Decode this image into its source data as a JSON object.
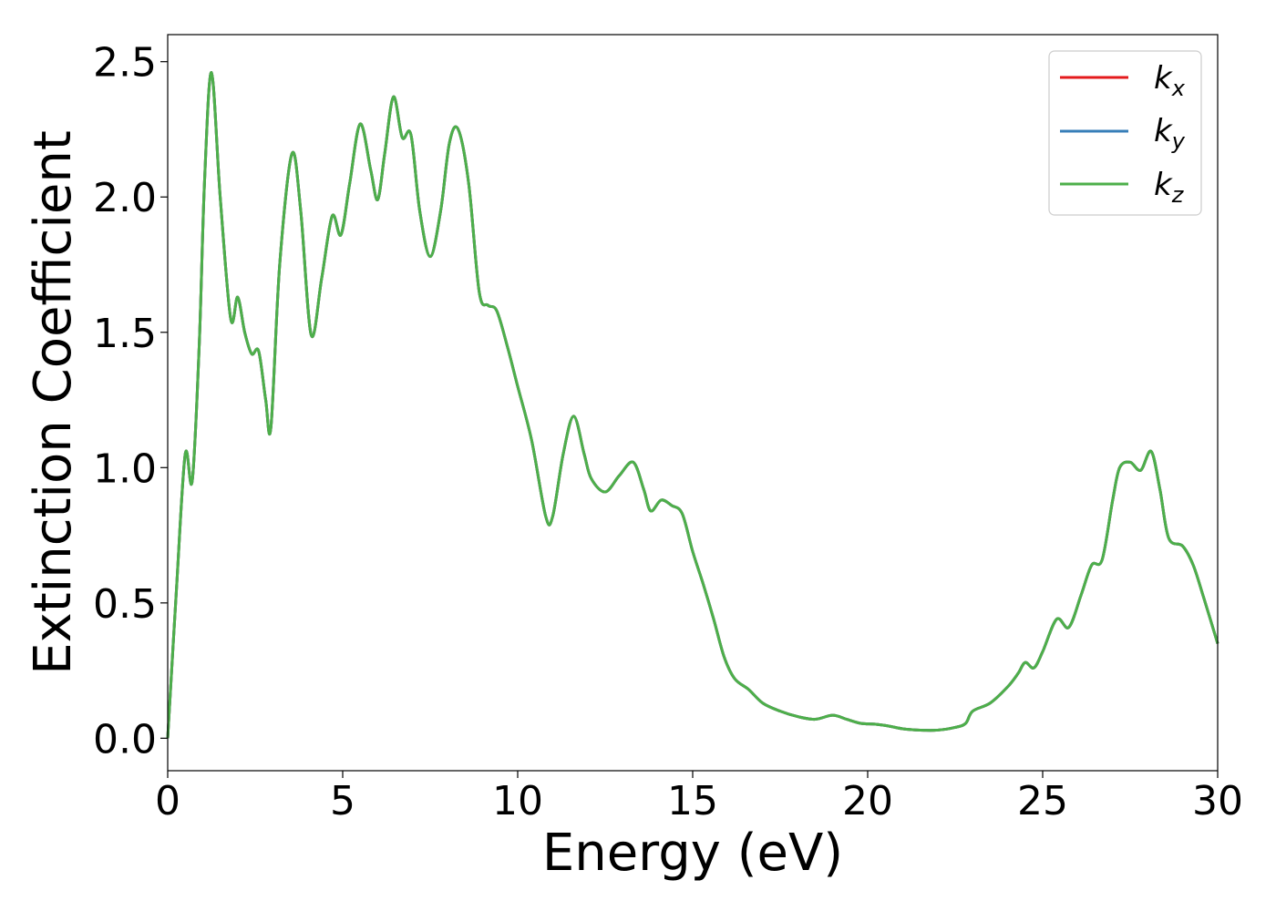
{
  "chart_data": {
    "type": "line",
    "xlabel": "Energy (eV)",
    "ylabel": "Extinction Coefficient",
    "xlim": [
      0,
      30
    ],
    "ylim": [
      -0.12,
      2.6
    ],
    "xticks": [
      0,
      5,
      10,
      15,
      20,
      25,
      30
    ],
    "xtick_labels": [
      "0",
      "5",
      "10",
      "15",
      "20",
      "25",
      "30"
    ],
    "yticks": [
      0.0,
      0.5,
      1.0,
      1.5,
      2.0,
      2.5
    ],
    "ytick_labels": [
      "0.0",
      "0.5",
      "1.0",
      "1.5",
      "2.0",
      "2.5"
    ],
    "grid": false,
    "legend_position": "top-right",
    "series": [
      {
        "name": "k_x",
        "label_base": "k",
        "label_sub": "x",
        "color": "#e41a1c",
        "x": [
          0,
          0.25,
          0.5,
          0.7,
          0.9,
          1.05,
          1.25,
          1.5,
          1.8,
          2.0,
          2.2,
          2.4,
          2.6,
          2.8,
          2.95,
          3.2,
          3.55,
          3.8,
          4.1,
          4.4,
          4.7,
          4.95,
          5.2,
          5.5,
          5.8,
          6.0,
          6.2,
          6.45,
          6.7,
          6.95,
          7.2,
          7.5,
          7.8,
          8.05,
          8.3,
          8.6,
          8.9,
          9.15,
          9.4,
          9.7,
          10.0,
          10.4,
          10.8,
          11.0,
          11.3,
          11.6,
          11.9,
          12.1,
          12.5,
          12.9,
          13.3,
          13.6,
          13.8,
          14.1,
          14.4,
          14.7,
          15.0,
          15.3,
          15.6,
          15.9,
          16.2,
          16.6,
          17.0,
          17.5,
          18.0,
          18.5,
          19.0,
          19.4,
          19.8,
          20.2,
          20.6,
          21.0,
          21.5,
          22.0,
          22.5,
          22.8,
          23.0,
          23.5,
          24.0,
          24.3,
          24.5,
          24.75,
          25.0,
          25.4,
          25.75,
          26.1,
          26.4,
          26.7,
          27.0,
          27.2,
          27.5,
          27.8,
          28.1,
          28.35,
          28.6,
          29.0,
          29.3,
          29.6,
          30.0
        ],
        "y": [
          0.0,
          0.55,
          1.05,
          0.95,
          1.45,
          2.05,
          2.46,
          2.0,
          1.55,
          1.63,
          1.5,
          1.42,
          1.43,
          1.25,
          1.15,
          1.75,
          2.16,
          1.95,
          1.49,
          1.7,
          1.93,
          1.86,
          2.05,
          2.27,
          2.1,
          1.99,
          2.16,
          2.37,
          2.22,
          2.23,
          1.95,
          1.78,
          1.95,
          2.2,
          2.25,
          2.05,
          1.65,
          1.6,
          1.58,
          1.45,
          1.3,
          1.1,
          0.82,
          0.82,
          1.05,
          1.19,
          1.05,
          0.96,
          0.91,
          0.97,
          1.02,
          0.92,
          0.84,
          0.88,
          0.86,
          0.83,
          0.69,
          0.57,
          0.44,
          0.3,
          0.22,
          0.18,
          0.13,
          0.1,
          0.08,
          0.07,
          0.085,
          0.07,
          0.055,
          0.052,
          0.045,
          0.035,
          0.03,
          0.03,
          0.04,
          0.055,
          0.1,
          0.13,
          0.19,
          0.24,
          0.28,
          0.26,
          0.32,
          0.44,
          0.41,
          0.53,
          0.64,
          0.66,
          0.88,
          1.0,
          1.02,
          0.99,
          1.06,
          0.92,
          0.74,
          0.71,
          0.64,
          0.52,
          0.35
        ]
      },
      {
        "name": "k_y",
        "label_base": "k",
        "label_sub": "y",
        "color": "#377eb8",
        "x": [
          0,
          0.25,
          0.5,
          0.7,
          0.9,
          1.05,
          1.25,
          1.5,
          1.8,
          2.0,
          2.2,
          2.4,
          2.6,
          2.8,
          2.95,
          3.2,
          3.55,
          3.8,
          4.1,
          4.4,
          4.7,
          4.95,
          5.2,
          5.5,
          5.8,
          6.0,
          6.2,
          6.45,
          6.7,
          6.95,
          7.2,
          7.5,
          7.8,
          8.05,
          8.3,
          8.6,
          8.9,
          9.15,
          9.4,
          9.7,
          10.0,
          10.4,
          10.8,
          11.0,
          11.3,
          11.6,
          11.9,
          12.1,
          12.5,
          12.9,
          13.3,
          13.6,
          13.8,
          14.1,
          14.4,
          14.7,
          15.0,
          15.3,
          15.6,
          15.9,
          16.2,
          16.6,
          17.0,
          17.5,
          18.0,
          18.5,
          19.0,
          19.4,
          19.8,
          20.2,
          20.6,
          21.0,
          21.5,
          22.0,
          22.5,
          22.8,
          23.0,
          23.5,
          24.0,
          24.3,
          24.5,
          24.75,
          25.0,
          25.4,
          25.75,
          26.1,
          26.4,
          26.7,
          27.0,
          27.2,
          27.5,
          27.8,
          28.1,
          28.35,
          28.6,
          29.0,
          29.3,
          29.6,
          30.0
        ],
        "y": [
          0.0,
          0.55,
          1.05,
          0.95,
          1.45,
          2.05,
          2.46,
          2.0,
          1.55,
          1.63,
          1.5,
          1.42,
          1.43,
          1.25,
          1.15,
          1.75,
          2.16,
          1.95,
          1.49,
          1.7,
          1.93,
          1.86,
          2.05,
          2.27,
          2.1,
          1.99,
          2.16,
          2.37,
          2.22,
          2.23,
          1.95,
          1.78,
          1.95,
          2.2,
          2.25,
          2.05,
          1.65,
          1.6,
          1.58,
          1.45,
          1.3,
          1.1,
          0.82,
          0.82,
          1.05,
          1.19,
          1.05,
          0.96,
          0.91,
          0.97,
          1.02,
          0.92,
          0.84,
          0.88,
          0.86,
          0.83,
          0.69,
          0.57,
          0.44,
          0.3,
          0.22,
          0.18,
          0.13,
          0.1,
          0.08,
          0.07,
          0.085,
          0.07,
          0.055,
          0.052,
          0.045,
          0.035,
          0.03,
          0.03,
          0.04,
          0.055,
          0.1,
          0.13,
          0.19,
          0.24,
          0.28,
          0.26,
          0.32,
          0.44,
          0.41,
          0.53,
          0.64,
          0.66,
          0.88,
          1.0,
          1.02,
          0.99,
          1.06,
          0.92,
          0.74,
          0.71,
          0.64,
          0.52,
          0.35
        ]
      },
      {
        "name": "k_z",
        "label_base": "k",
        "label_sub": "z",
        "color": "#4daf4a",
        "x": [
          0,
          0.25,
          0.5,
          0.7,
          0.9,
          1.05,
          1.25,
          1.5,
          1.8,
          2.0,
          2.2,
          2.4,
          2.6,
          2.8,
          2.95,
          3.2,
          3.55,
          3.8,
          4.1,
          4.4,
          4.7,
          4.95,
          5.2,
          5.5,
          5.8,
          6.0,
          6.2,
          6.45,
          6.7,
          6.95,
          7.2,
          7.5,
          7.8,
          8.05,
          8.3,
          8.6,
          8.9,
          9.15,
          9.4,
          9.7,
          10.0,
          10.4,
          10.8,
          11.0,
          11.3,
          11.6,
          11.9,
          12.1,
          12.5,
          12.9,
          13.3,
          13.6,
          13.8,
          14.1,
          14.4,
          14.7,
          15.0,
          15.3,
          15.6,
          15.9,
          16.2,
          16.6,
          17.0,
          17.5,
          18.0,
          18.5,
          19.0,
          19.4,
          19.8,
          20.2,
          20.6,
          21.0,
          21.5,
          22.0,
          22.5,
          22.8,
          23.0,
          23.5,
          24.0,
          24.3,
          24.5,
          24.75,
          25.0,
          25.4,
          25.75,
          26.1,
          26.4,
          26.7,
          27.0,
          27.2,
          27.5,
          27.8,
          28.1,
          28.35,
          28.6,
          29.0,
          29.3,
          29.6,
          30.0
        ],
        "y": [
          0.0,
          0.55,
          1.05,
          0.95,
          1.45,
          2.05,
          2.46,
          2.0,
          1.55,
          1.63,
          1.5,
          1.42,
          1.43,
          1.25,
          1.15,
          1.75,
          2.16,
          1.95,
          1.49,
          1.7,
          1.93,
          1.86,
          2.05,
          2.27,
          2.1,
          1.99,
          2.16,
          2.37,
          2.22,
          2.23,
          1.95,
          1.78,
          1.95,
          2.2,
          2.25,
          2.05,
          1.65,
          1.6,
          1.58,
          1.45,
          1.3,
          1.1,
          0.82,
          0.82,
          1.05,
          1.19,
          1.05,
          0.96,
          0.91,
          0.97,
          1.02,
          0.92,
          0.84,
          0.88,
          0.86,
          0.83,
          0.69,
          0.57,
          0.44,
          0.3,
          0.22,
          0.18,
          0.13,
          0.1,
          0.08,
          0.07,
          0.085,
          0.07,
          0.055,
          0.052,
          0.045,
          0.035,
          0.03,
          0.03,
          0.04,
          0.055,
          0.1,
          0.13,
          0.19,
          0.24,
          0.28,
          0.26,
          0.32,
          0.44,
          0.41,
          0.53,
          0.64,
          0.66,
          0.88,
          1.0,
          1.02,
          0.99,
          1.06,
          0.92,
          0.74,
          0.71,
          0.64,
          0.52,
          0.35
        ]
      }
    ]
  }
}
